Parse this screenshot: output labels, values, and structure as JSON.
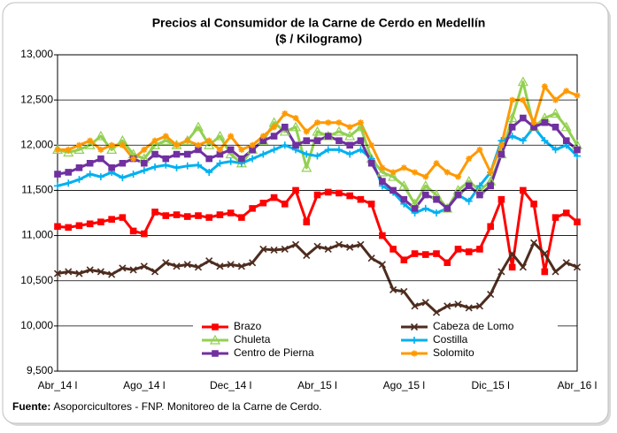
{
  "chart_data": {
    "type": "line",
    "title": "Precios al Consumidor de la Carne de Cerdo en Medellín",
    "subtitle": "($ / Kilogramo)",
    "categories": [
      "Abr_14 l",
      null,
      null,
      null,
      null,
      null,
      null,
      null,
      "Ago_14 l",
      null,
      null,
      null,
      null,
      null,
      null,
      null,
      "Dec_14 l",
      null,
      null,
      null,
      null,
      null,
      null,
      null,
      "Abr_15 l",
      null,
      null,
      null,
      null,
      null,
      null,
      null,
      "Ago_15 l",
      null,
      null,
      null,
      null,
      null,
      null,
      null,
      "Dic_15 l",
      null,
      null,
      null,
      null,
      null,
      null,
      null,
      "Abr_16 l"
    ],
    "ylim": [
      9500,
      13000
    ],
    "yticks": [
      {
        "value": 9500,
        "label": "9,500"
      },
      {
        "value": 10000,
        "label": "10,000"
      },
      {
        "value": 10500,
        "label": "10,500"
      },
      {
        "value": 11000,
        "label": "11,000"
      },
      {
        "value": 11500,
        "label": "11,500"
      },
      {
        "value": 12000,
        "label": "12,000"
      },
      {
        "value": 12500,
        "label": "12,500"
      },
      {
        "value": 13000,
        "label": "13,000"
      }
    ],
    "grid": true,
    "series": [
      {
        "name": "Brazo",
        "color": "#ff0000",
        "marker": "square",
        "values": [
          11100,
          11090,
          11110,
          11130,
          11150,
          11180,
          11200,
          11050,
          11020,
          11260,
          11220,
          11230,
          11210,
          11220,
          11200,
          11230,
          11250,
          11200,
          11300,
          11360,
          11420,
          11350,
          11500,
          11150,
          11450,
          11480,
          11470,
          11440,
          11400,
          11350,
          11000,
          10850,
          10730,
          10800,
          10790,
          10800,
          10700,
          10850,
          10820,
          10850,
          11100,
          11400,
          10650,
          11500,
          11350,
          10600,
          11200,
          11250,
          11150
        ]
      },
      {
        "name": "Cabeza de Lomo",
        "color": "#4d2c1f",
        "marker": "x",
        "values": [
          10580,
          10600,
          10580,
          10620,
          10600,
          10570,
          10640,
          10620,
          10660,
          10600,
          10700,
          10660,
          10680,
          10650,
          10720,
          10660,
          10680,
          10660,
          10700,
          10850,
          10840,
          10850,
          10900,
          10780,
          10880,
          10850,
          10900,
          10870,
          10900,
          10750,
          10680,
          10400,
          10380,
          10220,
          10260,
          10150,
          10220,
          10240,
          10200,
          10220,
          10350,
          10600,
          10800,
          10650,
          10920,
          10800,
          10600,
          10700,
          10650
        ]
      },
      {
        "name": "Chuleta",
        "color": "#92d050",
        "marker": "triangle",
        "values": [
          11950,
          11920,
          11950,
          12000,
          12100,
          11950,
          12050,
          11900,
          11850,
          12000,
          12050,
          12000,
          12050,
          12200,
          12000,
          12100,
          11900,
          11800,
          11950,
          12050,
          12250,
          12150,
          12200,
          11750,
          12150,
          12100,
          12150,
          12100,
          12200,
          11850,
          11700,
          11650,
          11550,
          11350,
          11550,
          11450,
          11300,
          11500,
          11600,
          11500,
          11600,
          11900,
          12300,
          12700,
          12200,
          12300,
          12350,
          12200,
          12000
        ]
      },
      {
        "name": "Costilla",
        "color": "#00b0f0",
        "marker": "plus",
        "values": [
          11550,
          11580,
          11620,
          11680,
          11650,
          11700,
          11640,
          11680,
          11720,
          11760,
          11780,
          11750,
          11770,
          11780,
          11700,
          11800,
          11820,
          11800,
          11850,
          11900,
          11950,
          12000,
          11950,
          11900,
          11880,
          11950,
          11950,
          11900,
          11950,
          11850,
          11550,
          11480,
          11350,
          11250,
          11300,
          11250,
          11300,
          11450,
          11380,
          11550,
          11700,
          12050,
          12100,
          12050,
          12200,
          12050,
          11950,
          12000,
          11880
        ]
      },
      {
        "name": "Centro de Pierna",
        "color": "#7030a0",
        "marker": "square",
        "values": [
          11680,
          11700,
          11750,
          11800,
          11850,
          11750,
          11800,
          11850,
          11800,
          11900,
          11850,
          11900,
          11900,
          11950,
          11850,
          11900,
          11950,
          11850,
          11950,
          12050,
          12100,
          12200,
          12000,
          12050,
          12050,
          12100,
          12050,
          12000,
          12050,
          11800,
          11600,
          11500,
          11400,
          11300,
          11450,
          11400,
          11300,
          11450,
          11550,
          11450,
          11550,
          11900,
          12200,
          12300,
          12200,
          12250,
          12200,
          12050,
          11950
        ]
      },
      {
        "name": "Solomito",
        "color": "#ff9900",
        "marker": "star",
        "values": [
          11950,
          11950,
          12000,
          12050,
          11950,
          12000,
          12000,
          11850,
          11950,
          12050,
          12100,
          12000,
          12050,
          12000,
          12050,
          11950,
          12100,
          11950,
          12000,
          12100,
          12200,
          12350,
          12300,
          12150,
          12250,
          12250,
          12250,
          12200,
          12250,
          12000,
          11750,
          11700,
          11750,
          11700,
          11650,
          11800,
          11700,
          11650,
          11850,
          11950,
          11700,
          12000,
          12500,
          12500,
          12250,
          12650,
          12500,
          12600,
          12550
        ]
      }
    ],
    "source": {
      "label": "Fuente:",
      "text": "Asoporcicultores - FNP. Monitoreo de la Carne de Cerdo."
    }
  }
}
